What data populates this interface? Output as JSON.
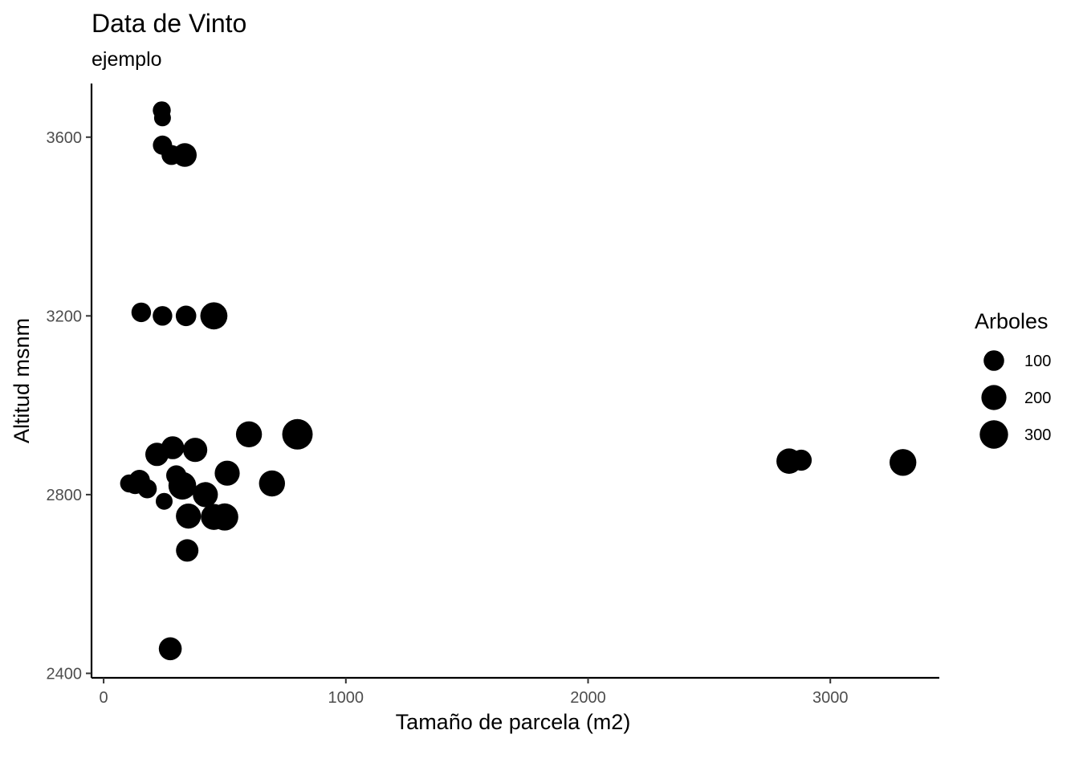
{
  "chart_data": {
    "type": "scatter",
    "title": "Data de Vinto",
    "subtitle": "ejemplo",
    "xlabel": "Tamaño de parcela (m2)",
    "ylabel": "Altitud msnm",
    "xlim": [
      -50,
      3450
    ],
    "ylim": [
      2390,
      3720
    ],
    "x_ticks": [
      0,
      1000,
      2000,
      3000
    ],
    "y_ticks": [
      2400,
      2800,
      3200,
      3600
    ],
    "x_tick_labels": [
      "0",
      "1000",
      "2000",
      "3000"
    ],
    "y_tick_labels": [
      "2400",
      "2800",
      "3200",
      "3600"
    ],
    "grid": false,
    "point_color": "#000000",
    "size_legend": {
      "title": "Arboles",
      "placement": "right",
      "entries": [
        {
          "value": 100,
          "label": "100"
        },
        {
          "value": 200,
          "label": "200"
        },
        {
          "value": 300,
          "label": "300"
        }
      ]
    },
    "points": [
      {
        "x": 240,
        "y": 3660,
        "size": 60
      },
      {
        "x": 243,
        "y": 3643,
        "size": 45
      },
      {
        "x": 243,
        "y": 3582,
        "size": 80
      },
      {
        "x": 280,
        "y": 3560,
        "size": 90
      },
      {
        "x": 335,
        "y": 3560,
        "size": 170
      },
      {
        "x": 155,
        "y": 3208,
        "size": 85
      },
      {
        "x": 243,
        "y": 3200,
        "size": 85
      },
      {
        "x": 340,
        "y": 3200,
        "size": 100
      },
      {
        "x": 455,
        "y": 3200,
        "size": 260
      },
      {
        "x": 800,
        "y": 2935,
        "size": 370
      },
      {
        "x": 600,
        "y": 2935,
        "size": 230
      },
      {
        "x": 285,
        "y": 2905,
        "size": 150
      },
      {
        "x": 378,
        "y": 2900,
        "size": 180
      },
      {
        "x": 220,
        "y": 2890,
        "size": 160
      },
      {
        "x": 2830,
        "y": 2875,
        "size": 210
      },
      {
        "x": 2880,
        "y": 2877,
        "size": 110
      },
      {
        "x": 3300,
        "y": 2872,
        "size": 250
      },
      {
        "x": 510,
        "y": 2848,
        "size": 200
      },
      {
        "x": 300,
        "y": 2843,
        "size": 95
      },
      {
        "x": 148,
        "y": 2832,
        "size": 110
      },
      {
        "x": 105,
        "y": 2825,
        "size": 60
      },
      {
        "x": 130,
        "y": 2822,
        "size": 70
      },
      {
        "x": 180,
        "y": 2813,
        "size": 75
      },
      {
        "x": 325,
        "y": 2820,
        "size": 280
      },
      {
        "x": 695,
        "y": 2825,
        "size": 230
      },
      {
        "x": 420,
        "y": 2800,
        "size": 200
      },
      {
        "x": 250,
        "y": 2785,
        "size": 45
      },
      {
        "x": 350,
        "y": 2752,
        "size": 200
      },
      {
        "x": 455,
        "y": 2750,
        "size": 230
      },
      {
        "x": 500,
        "y": 2750,
        "size": 260
      },
      {
        "x": 345,
        "y": 2675,
        "size": 140
      },
      {
        "x": 275,
        "y": 2455,
        "size": 150
      }
    ]
  }
}
